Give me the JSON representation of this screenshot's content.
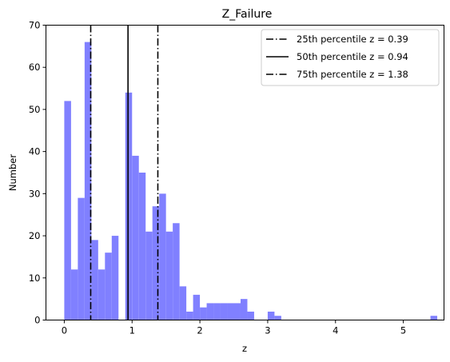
{
  "chart_data": {
    "type": "bar",
    "title": "Z_Failure",
    "xlabel": "z",
    "ylabel": "Number",
    "xlim": [
      -0.27,
      5.6
    ],
    "ylim": [
      0,
      70
    ],
    "x_ticks": [
      0,
      1,
      2,
      3,
      4,
      5
    ],
    "y_ticks": [
      0,
      10,
      20,
      30,
      40,
      50,
      60,
      70
    ],
    "bar_color": "#8080ff",
    "bin_width": 0.1,
    "bins": [
      {
        "x0": 0.0,
        "count": 52
      },
      {
        "x0": 0.1,
        "count": 12
      },
      {
        "x0": 0.2,
        "count": 29
      },
      {
        "x0": 0.3,
        "count": 66
      },
      {
        "x0": 0.4,
        "count": 19
      },
      {
        "x0": 0.5,
        "count": 12
      },
      {
        "x0": 0.6,
        "count": 16
      },
      {
        "x0": 0.7,
        "count": 20
      },
      {
        "x0": 0.9,
        "count": 54
      },
      {
        "x0": 1.0,
        "count": 39
      },
      {
        "x0": 1.1,
        "count": 35
      },
      {
        "x0": 1.2,
        "count": 21
      },
      {
        "x0": 1.3,
        "count": 27
      },
      {
        "x0": 1.4,
        "count": 30
      },
      {
        "x0": 1.5,
        "count": 21
      },
      {
        "x0": 1.6,
        "count": 23
      },
      {
        "x0": 1.7,
        "count": 8
      },
      {
        "x0": 1.8,
        "count": 2
      },
      {
        "x0": 1.9,
        "count": 6
      },
      {
        "x0": 2.0,
        "count": 3
      },
      {
        "x0": 2.1,
        "count": 4
      },
      {
        "x0": 2.2,
        "count": 4
      },
      {
        "x0": 2.3,
        "count": 4
      },
      {
        "x0": 2.4,
        "count": 4
      },
      {
        "x0": 2.5,
        "count": 4
      },
      {
        "x0": 2.6,
        "count": 5
      },
      {
        "x0": 2.7,
        "count": 2
      },
      {
        "x0": 3.0,
        "count": 2
      },
      {
        "x0": 3.1,
        "count": 1
      },
      {
        "x0": 5.4,
        "count": 1
      }
    ],
    "percentile_lines": [
      {
        "label": "25th percentile z = 0.39",
        "value": 0.39,
        "style": "dashdot"
      },
      {
        "label": "50th percentile z = 0.94",
        "value": 0.94,
        "style": "solid"
      },
      {
        "label": "75th percentile z = 1.38",
        "value": 1.38,
        "style": "dashdot"
      }
    ],
    "legend_position": "top-right",
    "grid": false
  }
}
